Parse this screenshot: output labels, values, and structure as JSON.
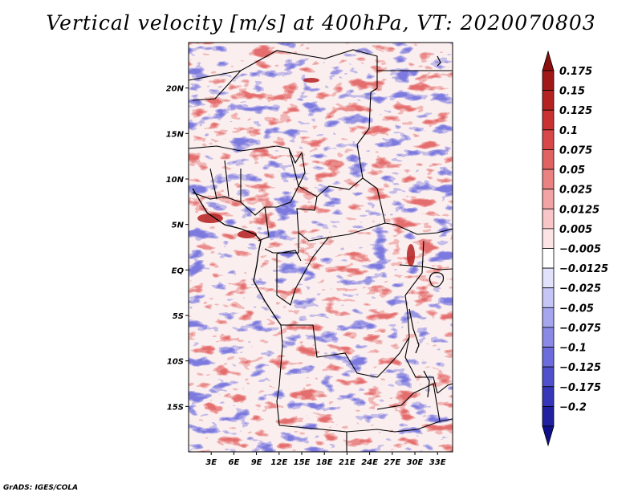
{
  "title": "Vertical velocity [m/s] at 400hPa, VT: 2020070803",
  "footer": "GrADS: IGES/COLA",
  "map": {
    "lon_range": [
      0,
      35
    ],
    "lat_range": [
      -20,
      25
    ],
    "lat_ticks": [
      {
        "value": 20,
        "label": "20N"
      },
      {
        "value": 15,
        "label": "15N"
      },
      {
        "value": 10,
        "label": "10N"
      },
      {
        "value": 5,
        "label": "5N"
      },
      {
        "value": 0,
        "label": "EQ"
      },
      {
        "value": -5,
        "label": "5S"
      },
      {
        "value": -10,
        "label": "10S"
      },
      {
        "value": -15,
        "label": "15S"
      }
    ],
    "lon_ticks": [
      {
        "value": 3,
        "label": "3E"
      },
      {
        "value": 6,
        "label": "6E"
      },
      {
        "value": 9,
        "label": "9E"
      },
      {
        "value": 12,
        "label": "12E"
      },
      {
        "value": 15,
        "label": "15E"
      },
      {
        "value": 18,
        "label": "18E"
      },
      {
        "value": 21,
        "label": "21E"
      },
      {
        "value": 24,
        "label": "24E"
      },
      {
        "value": 27,
        "label": "27E"
      },
      {
        "value": 30,
        "label": "30E"
      },
      {
        "value": 33,
        "label": "33E"
      }
    ]
  },
  "colorbar": {
    "levels": [
      {
        "label": "0.175",
        "color": "#a01818"
      },
      {
        "label": "0.15",
        "color": "#b42222"
      },
      {
        "label": "0.125",
        "color": "#c83232"
      },
      {
        "label": "0.1",
        "color": "#d84848"
      },
      {
        "label": "0.075",
        "color": "#e06262"
      },
      {
        "label": "0.05",
        "color": "#ea8282"
      },
      {
        "label": "0.025",
        "color": "#f2a4a4"
      },
      {
        "label": "0.0125",
        "color": "#f8c6c6"
      },
      {
        "label": "0.005",
        "color": "#fce4e4"
      },
      {
        "label": "−0.005",
        "color": "#ffffff"
      },
      {
        "label": "−0.0125",
        "color": "#e2e2fc"
      },
      {
        "label": "−0.025",
        "color": "#c6c6f6"
      },
      {
        "label": "−0.05",
        "color": "#a6a6ee"
      },
      {
        "label": "−0.075",
        "color": "#8a8ae6"
      },
      {
        "label": "−0.1",
        "color": "#6c6cdc"
      },
      {
        "label": "−0.125",
        "color": "#5050cc"
      },
      {
        "label": "−0.175",
        "color": "#3636b8"
      },
      {
        "label": "−0.2",
        "color": "#2020a0"
      }
    ],
    "top_arrow_color": "#8c1010",
    "bottom_arrow_color": "#10108c"
  }
}
